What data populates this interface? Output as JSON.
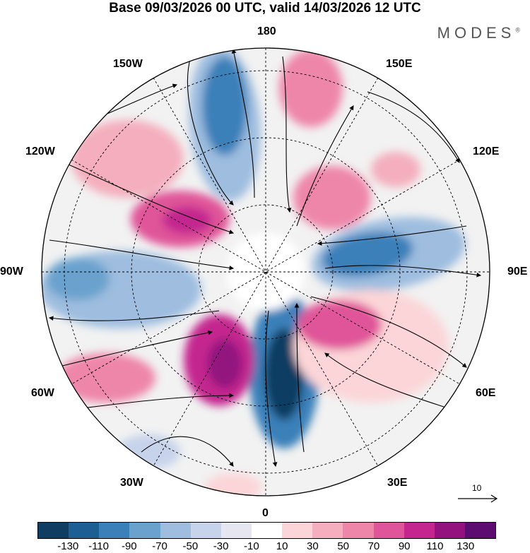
{
  "title": "Base 09/03/2026 00 UTC, valid 14/03/2026 12 UTC",
  "brand": "MODES",
  "brand_mark": "®",
  "longitude_labels": {
    "n180": "180",
    "e150": "150E",
    "e120": "120E",
    "e90": "90E",
    "e60": "60E",
    "e30": "30E",
    "z0": "0",
    "w30": "30W",
    "w60": "60W",
    "w90": "90W",
    "w120": "120W",
    "w150": "150W"
  },
  "reference_vector": {
    "label": "10"
  },
  "colorbar": {
    "colors": [
      "#0f3e62",
      "#1d5f93",
      "#3b80b9",
      "#6aa2cd",
      "#9ebddf",
      "#c6d3ea",
      "#e6e6f0",
      "#ffffff",
      "#fbd5d8",
      "#f4aebd",
      "#ee86a9",
      "#e05599",
      "#c4258f",
      "#93127f",
      "#5c0d6f"
    ],
    "ticks": [
      "-130",
      "-110",
      "-90",
      "-70",
      "-50",
      "-30",
      "-10",
      "10",
      "30",
      "50",
      "70",
      "90",
      "110",
      "130"
    ]
  }
}
